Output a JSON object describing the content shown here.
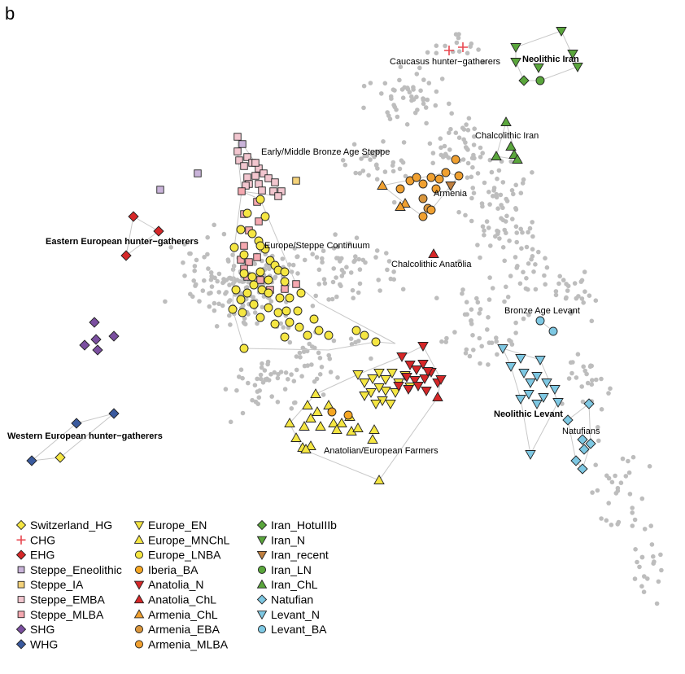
{
  "panel_letter": "b",
  "chart_data": {
    "type": "scatter",
    "title": "",
    "xlabel": "",
    "ylabel": "",
    "grid": false,
    "legend_position": "bottom-left",
    "background_samples": {
      "color": "#bdbdbd",
      "count": 720
    },
    "group_labels": [
      {
        "text": "Caucasus hunter−gatherers",
        "bold": false
      },
      {
        "text": "Neolithic Iran",
        "bold": true
      },
      {
        "text": "Chalcolithic Iran",
        "bold": false
      },
      {
        "text": "Early/Middle Bronze Age Steppe",
        "bold": false
      },
      {
        "text": "Armenia",
        "bold": false
      },
      {
        "text": "Eastern European hunter−gatherers",
        "bold": true
      },
      {
        "text": "Europe/Steppe Continuum",
        "bold": false
      },
      {
        "text": "Chalcolithic Anatolia",
        "bold": false
      },
      {
        "text": "Bronze Age Levant",
        "bold": false
      },
      {
        "text": "Neolithic Levant",
        "bold": true
      },
      {
        "text": "Natufians",
        "bold": false
      },
      {
        "text": "Western European hunter−gatherers",
        "bold": true
      },
      {
        "text": "Anatolian/European Farmers",
        "bold": false
      }
    ],
    "series": [
      {
        "name": "Switzerland_HG",
        "marker": "diamond",
        "color": "#f5e642",
        "points": [
          [
            74,
            562
          ]
        ]
      },
      {
        "name": "CHG",
        "marker": "plus",
        "color": "#e8474f",
        "points": [
          [
            552,
            62
          ],
          [
            569,
            58
          ]
        ]
      },
      {
        "name": "EHG",
        "marker": "diamond",
        "color": "#d62728",
        "points": [
          [
            164,
            266
          ],
          [
            195,
            284
          ],
          [
            155,
            314
          ]
        ]
      },
      {
        "name": "Steppe_Eneolithic",
        "marker": "square",
        "color": "#c9b3d9",
        "points": [
          [
            197,
            233
          ],
          [
            243,
            213
          ],
          [
            298,
            177
          ]
        ]
      },
      {
        "name": "Steppe_IA",
        "marker": "square",
        "color": "#f5d37a",
        "points": [
          [
            364,
            222
          ]
        ]
      },
      {
        "name": "Steppe_EMBA",
        "marker": "square",
        "color": "#f2c6cf",
        "points": [
          [
            292,
            168
          ],
          [
            292,
            186
          ],
          [
            294,
            197
          ],
          [
            300,
            204
          ],
          [
            304,
            193
          ],
          [
            310,
            200
          ],
          [
            318,
            207
          ],
          [
            324,
            213
          ],
          [
            314,
            216
          ],
          [
            304,
            218
          ],
          [
            306,
            226
          ],
          [
            318,
            226
          ],
          [
            322,
            234
          ],
          [
            330,
            219
          ],
          [
            338,
            224
          ],
          [
            336,
            235
          ],
          [
            346,
            235
          ],
          [
            342,
            241
          ],
          [
            302,
            228
          ],
          [
            314,
            200
          ]
        ]
      },
      {
        "name": "Steppe_MLBA",
        "marker": "square",
        "color": "#f5a8b0",
        "points": [
          [
            297,
            235
          ],
          [
            316,
            248
          ],
          [
            300,
            263
          ],
          [
            318,
            272
          ],
          [
            306,
            283
          ],
          [
            300,
            302
          ],
          [
            296,
            319
          ],
          [
            306,
            322
          ],
          [
            300,
            330
          ],
          [
            304,
            340
          ],
          [
            320,
            344
          ],
          [
            332,
            356
          ],
          [
            350,
            355
          ],
          [
            364,
            349
          ],
          [
            316,
            316
          ]
        ]
      },
      {
        "name": "SHG",
        "marker": "diamond",
        "color": "#7b4fa0",
        "points": [
          [
            116,
            396
          ],
          [
            104,
            424
          ],
          [
            120,
            430
          ],
          [
            140,
            413
          ],
          [
            118,
            417
          ]
        ]
      },
      {
        "name": "WHG",
        "marker": "diamond",
        "color": "#3a5a9e",
        "points": [
          [
            94,
            520
          ],
          [
            140,
            508
          ],
          [
            39,
            566
          ]
        ]
      },
      {
        "name": "Europe_EN",
        "marker": "triangle-down",
        "color": "#f5e642",
        "points": [
          [
            440,
            460
          ],
          [
            448,
            470
          ],
          [
            458,
            465
          ],
          [
            466,
            458
          ],
          [
            474,
            466
          ],
          [
            482,
            458
          ],
          [
            490,
            470
          ],
          [
            498,
            461
          ],
          [
            504,
            475
          ],
          [
            474,
            480
          ],
          [
            486,
            482
          ],
          [
            466,
            476
          ],
          [
            456,
            482
          ],
          [
            470,
            492
          ],
          [
            462,
            496
          ],
          [
            480,
            496
          ],
          [
            448,
            486
          ]
        ]
      },
      {
        "name": "Europe_MNChL",
        "marker": "triangle-up",
        "color": "#f5e642",
        "points": [
          [
            388,
            484
          ],
          [
            404,
            498
          ],
          [
            390,
            506
          ],
          [
            378,
            498
          ],
          [
            382,
            514
          ],
          [
            394,
            524
          ],
          [
            410,
            520
          ],
          [
            420,
            520
          ],
          [
            414,
            528
          ],
          [
            374,
            524
          ],
          [
            364,
            538
          ],
          [
            372,
            550
          ],
          [
            382,
            548
          ],
          [
            356,
            520
          ],
          [
            430,
            512
          ],
          [
            432,
            530
          ],
          [
            440,
            526
          ],
          [
            460,
            528
          ],
          [
            458,
            540
          ],
          [
            466,
            590
          ],
          [
            376,
            552
          ]
        ]
      },
      {
        "name": "Europe_LNBA",
        "marker": "circle",
        "color": "#f5e642",
        "points": [
          [
            320,
            245
          ],
          [
            304,
            262
          ],
          [
            326,
            266
          ],
          [
            296,
            282
          ],
          [
            310,
            287
          ],
          [
            318,
            296
          ],
          [
            326,
            306
          ],
          [
            288,
            304
          ],
          [
            300,
            313
          ],
          [
            332,
            320
          ],
          [
            338,
            326
          ],
          [
            342,
            332
          ],
          [
            350,
            334
          ],
          [
            320,
            334
          ],
          [
            310,
            340
          ],
          [
            312,
            350
          ],
          [
            322,
            356
          ],
          [
            330,
            360
          ],
          [
            344,
            366
          ],
          [
            356,
            366
          ],
          [
            304,
            360
          ],
          [
            296,
            368
          ],
          [
            286,
            380
          ],
          [
            298,
            384
          ],
          [
            312,
            374
          ],
          [
            330,
            378
          ],
          [
            342,
            384
          ],
          [
            352,
            382
          ],
          [
            366,
            382
          ],
          [
            320,
            390
          ],
          [
            338,
            398
          ],
          [
            356,
            396
          ],
          [
            368,
            402
          ],
          [
            378,
            412
          ],
          [
            392,
            406
          ],
          [
            404,
            412
          ],
          [
            438,
            406
          ],
          [
            448,
            412
          ],
          [
            462,
            420
          ],
          [
            300,
            428
          ],
          [
            350,
            414
          ],
          [
            386,
            392
          ],
          [
            370,
            360
          ],
          [
            300,
            336
          ],
          [
            290,
            356
          ],
          [
            330,
            344
          ],
          [
            350,
            346
          ],
          [
            320,
            302
          ]
        ]
      },
      {
        "name": "Iberia_BA",
        "marker": "circle",
        "color": "#f5a623",
        "points": [
          [
            428,
            510
          ],
          [
            408,
            506
          ]
        ]
      },
      {
        "name": "Anatolia_N",
        "marker": "triangle-down",
        "color": "#d62728",
        "points": [
          [
            494,
            438
          ],
          [
            504,
            448
          ],
          [
            512,
            454
          ],
          [
            520,
            447
          ],
          [
            530,
            457
          ],
          [
            522,
            465
          ],
          [
            510,
            467
          ],
          [
            500,
            463
          ],
          [
            514,
            474
          ],
          [
            524,
            480
          ],
          [
            502,
            478
          ],
          [
            538,
            470
          ],
          [
            542,
            466
          ],
          [
            520,
            425
          ],
          [
            490,
            474
          ],
          [
            526,
            456
          ]
        ]
      },
      {
        "name": "Anatolia_ChL",
        "marker": "triangle-up",
        "color": "#d62728",
        "points": [
          [
            533,
            312
          ],
          [
            538,
            488
          ]
        ]
      },
      {
        "name": "Armenia_ChL",
        "marker": "triangle-up",
        "color": "#f0a030",
        "points": [
          [
            470,
            228
          ],
          [
            498,
            250
          ],
          [
            492,
            254
          ]
        ]
      },
      {
        "name": "Armenia_EBA",
        "marker": "circle",
        "color": "#d9963d",
        "points": [
          [
            520,
            244
          ],
          [
            526,
            256
          ]
        ]
      },
      {
        "name": "Armenia_MLBA",
        "marker": "circle",
        "color": "#f0a030",
        "points": [
          [
            492,
            232
          ],
          [
            504,
            222
          ],
          [
            512,
            218
          ],
          [
            520,
            226
          ],
          [
            530,
            218
          ],
          [
            540,
            220
          ],
          [
            548,
            212
          ],
          [
            560,
            196
          ],
          [
            564,
            216
          ],
          [
            536,
            232
          ],
          [
            530,
            258
          ],
          [
            520,
            266
          ]
        ]
      },
      {
        "name": "Iran_HotuIIIb",
        "marker": "diamond",
        "color": "#5aa63c",
        "points": [
          [
            644,
            99
          ]
        ]
      },
      {
        "name": "Iran_N",
        "marker": "triangle-down",
        "color": "#5aa63c",
        "points": [
          [
            634,
            58
          ],
          [
            690,
            38
          ],
          [
            704,
            66
          ],
          [
            710,
            82
          ],
          [
            634,
            76
          ],
          [
            662,
            83
          ]
        ]
      },
      {
        "name": "Iran_recent",
        "marker": "triangle-down",
        "color": "#c08040",
        "points": [
          [
            554,
            228
          ]
        ]
      },
      {
        "name": "Iran_LN",
        "marker": "circle",
        "color": "#5aa63c",
        "points": [
          [
            664,
            99
          ]
        ]
      },
      {
        "name": "Iran_ChL",
        "marker": "triangle-up",
        "color": "#5aa63c",
        "points": [
          [
            622,
            150
          ],
          [
            628,
            180
          ],
          [
            610,
            192
          ],
          [
            632,
            190
          ],
          [
            636,
            196
          ]
        ]
      },
      {
        "name": "Natufian",
        "marker": "diamond",
        "color": "#7ec8e3",
        "points": [
          [
            724,
            496
          ],
          [
            698,
            516
          ],
          [
            716,
            540
          ],
          [
            726,
            545
          ],
          [
            718,
            552
          ],
          [
            708,
            566
          ],
          [
            716,
            576
          ]
        ]
      },
      {
        "name": "Levant_N",
        "marker": "triangle-down",
        "color": "#7ec8e3",
        "points": [
          [
            618,
            428
          ],
          [
            640,
            440
          ],
          [
            628,
            450
          ],
          [
            664,
            442
          ],
          [
            644,
            458
          ],
          [
            652,
            470
          ],
          [
            660,
            462
          ],
          [
            672,
            470
          ],
          [
            682,
            478
          ],
          [
            640,
            490
          ],
          [
            650,
            484
          ],
          [
            660,
            496
          ],
          [
            668,
            488
          ],
          [
            686,
            494
          ],
          [
            652,
            558
          ]
        ]
      },
      {
        "name": "Levant_BA",
        "marker": "circle",
        "color": "#7ec8e3",
        "points": [
          [
            664,
            394
          ],
          [
            680,
            407
          ]
        ]
      }
    ]
  }
}
